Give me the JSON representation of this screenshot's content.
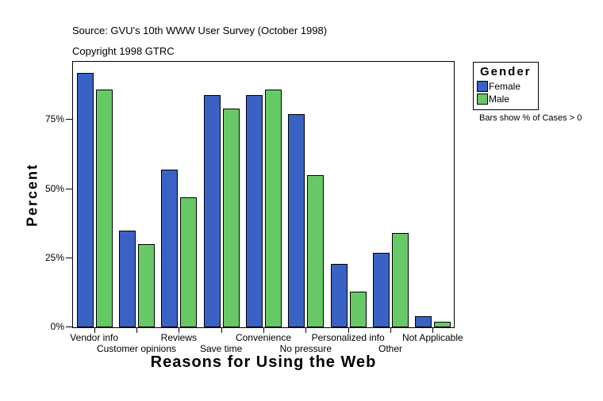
{
  "header": {
    "source_line": "Source: GVU's 10th WWW User Survey (October 1998)",
    "copyright_line": "Copyright 1998 GTRC"
  },
  "chart_data": {
    "type": "bar",
    "title": "",
    "xlabel": "Reasons for Using the Web",
    "ylabel": "Percent",
    "categories": [
      "Vendor info",
      "Customer opinions",
      "Reviews",
      "Save time",
      "Convenience",
      "No pressure",
      "Personalized info",
      "Other",
      "Not Applicable"
    ],
    "series": [
      {
        "name": "Female",
        "color": "#3A62C4",
        "values": [
          92,
          35,
          57,
          84,
          84,
          77,
          23,
          27,
          4
        ]
      },
      {
        "name": "Male",
        "color": "#66C966",
        "values": [
          86,
          30,
          47,
          79,
          86,
          55,
          13,
          34,
          2
        ]
      }
    ],
    "ylim": [
      0,
      96
    ],
    "yticks": [
      {
        "value": 0,
        "label": "0%"
      },
      {
        "value": 25,
        "label": "25%"
      },
      {
        "value": 50,
        "label": "50%"
      },
      {
        "value": 75,
        "label": "75%"
      }
    ],
    "grid": false,
    "legend_position": "outside-top-right",
    "bar_border_color": "#000000"
  },
  "legend": {
    "title": "Gender",
    "items": [
      {
        "label": "Female",
        "color": "#3A62C4"
      },
      {
        "label": "Male",
        "color": "#66C966"
      }
    ]
  },
  "note": "Bars show % of Cases > 0"
}
